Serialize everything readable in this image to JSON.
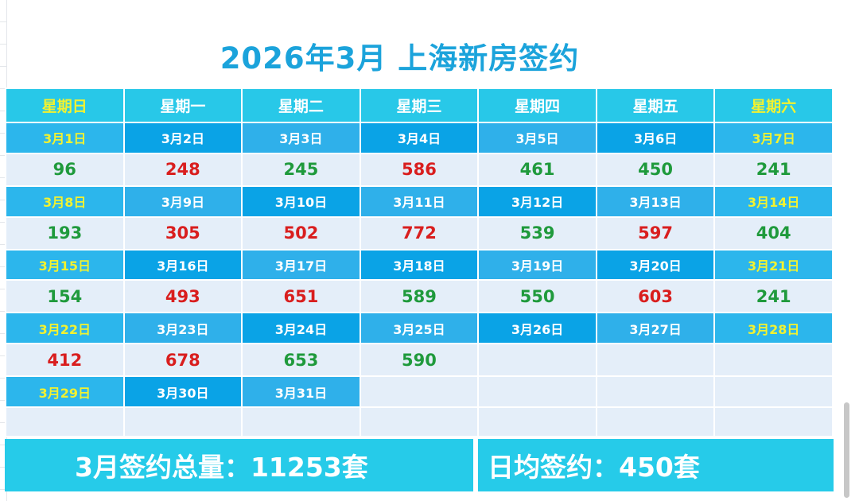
{
  "title": "2026年3月 上海新房签约",
  "weekdays": [
    "星期日",
    "星期一",
    "星期二",
    "星期三",
    "星期四",
    "星期五",
    "星期六"
  ],
  "weeks": [
    {
      "dates": [
        "3月1日",
        "3月2日",
        "3月3日",
        "3月4日",
        "3月5日",
        "3月6日",
        "3月7日"
      ],
      "values": [
        "96",
        "248",
        "245",
        "586",
        "461",
        "450",
        "241"
      ]
    },
    {
      "dates": [
        "3月8日",
        "3月9日",
        "3月10日",
        "3月11日",
        "3月12日",
        "3月13日",
        "3月14日"
      ],
      "values": [
        "193",
        "305",
        "502",
        "772",
        "539",
        "597",
        "404"
      ]
    },
    {
      "dates": [
        "3月15日",
        "3月16日",
        "3月17日",
        "3月18日",
        "3月19日",
        "3月20日",
        "3月21日"
      ],
      "values": [
        "154",
        "493",
        "651",
        "589",
        "550",
        "603",
        "241"
      ]
    },
    {
      "dates": [
        "3月22日",
        "3月23日",
        "3月24日",
        "3月25日",
        "3月26日",
        "3月27日",
        "3月28日"
      ],
      "values": [
        "412",
        "678",
        "653",
        "590",
        "",
        "",
        ""
      ]
    },
    {
      "dates": [
        "3月29日",
        "3月30日",
        "3月31日",
        "",
        "",
        "",
        ""
      ],
      "values": [
        "",
        "",
        "",
        "",
        "",
        "",
        ""
      ]
    }
  ],
  "colors": {
    "up": "#d91e1e",
    "down": "#1f9a3c",
    "weekend_text": "#f2f230",
    "title": "#1ba3db"
  },
  "value_colors": [
    [
      "green",
      "red",
      "green",
      "red",
      "green",
      "green",
      "green"
    ],
    [
      "green",
      "red",
      "red",
      "red",
      "green",
      "red",
      "green"
    ],
    [
      "green",
      "red",
      "red",
      "green",
      "green",
      "red",
      "green"
    ],
    [
      "red",
      "red",
      "green",
      "green",
      "",
      "",
      ""
    ],
    [
      "",
      "",
      "",
      "",
      "",
      "",
      ""
    ]
  ],
  "summary": {
    "total": "3月签约总量：11253套",
    "average": "日均签约：450套"
  }
}
